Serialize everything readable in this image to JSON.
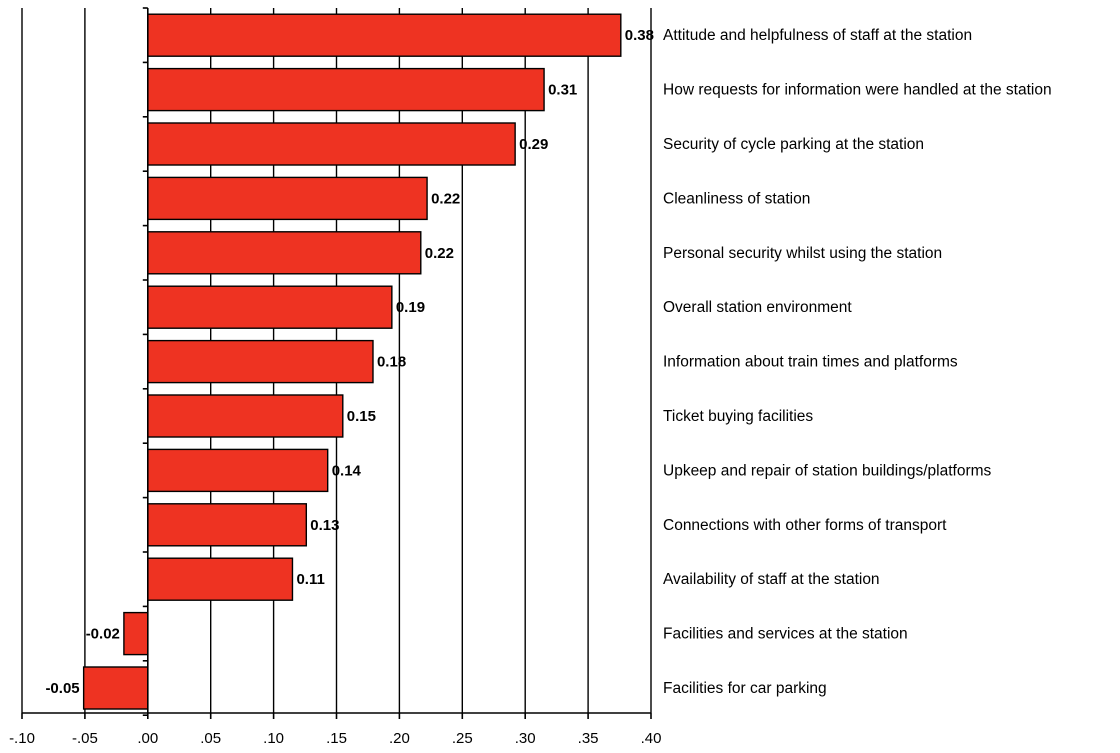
{
  "chart_data": {
    "type": "bar",
    "orientation": "horizontal",
    "categories": [
      "Attitude and helpfulness of staff at the station",
      "How requests for information were handled at the station",
      "Security of cycle parking at the station",
      "Cleanliness of station",
      "Personal security whilst using the station",
      "Overall station environment",
      "Information about train times and platforms",
      "Ticket buying facilities",
      "Upkeep and repair of station buildings/platforms",
      "Connections with other forms of transport",
      "Availability of staff at the station",
      "Facilities and services at the station",
      "Facilities for car parking"
    ],
    "values": [
      0.376,
      0.315,
      0.292,
      0.222,
      0.217,
      0.194,
      0.179,
      0.155,
      0.143,
      0.126,
      0.115,
      -0.019,
      -0.051
    ],
    "data_labels": [
      "0.38",
      "0.31",
      "0.29",
      "0.22",
      "0.22",
      "0.19",
      "0.18",
      "0.15",
      "0.14",
      "0.13",
      "0.11",
      "-0.02",
      "-0.05"
    ],
    "xlim": [
      -0.1,
      0.4
    ],
    "xticks": [
      -0.1,
      -0.05,
      0.0,
      0.05,
      0.1,
      0.15,
      0.2,
      0.25,
      0.3,
      0.35,
      0.4
    ],
    "xtick_labels": [
      "-.10",
      "-.05",
      ".00",
      ".05",
      ".10",
      ".15",
      ".20",
      ".25",
      ".30",
      ".35",
      ".40"
    ],
    "grid": true,
    "bar_color": "#ee3322",
    "title": "",
    "xlabel": "",
    "ylabel": ""
  }
}
